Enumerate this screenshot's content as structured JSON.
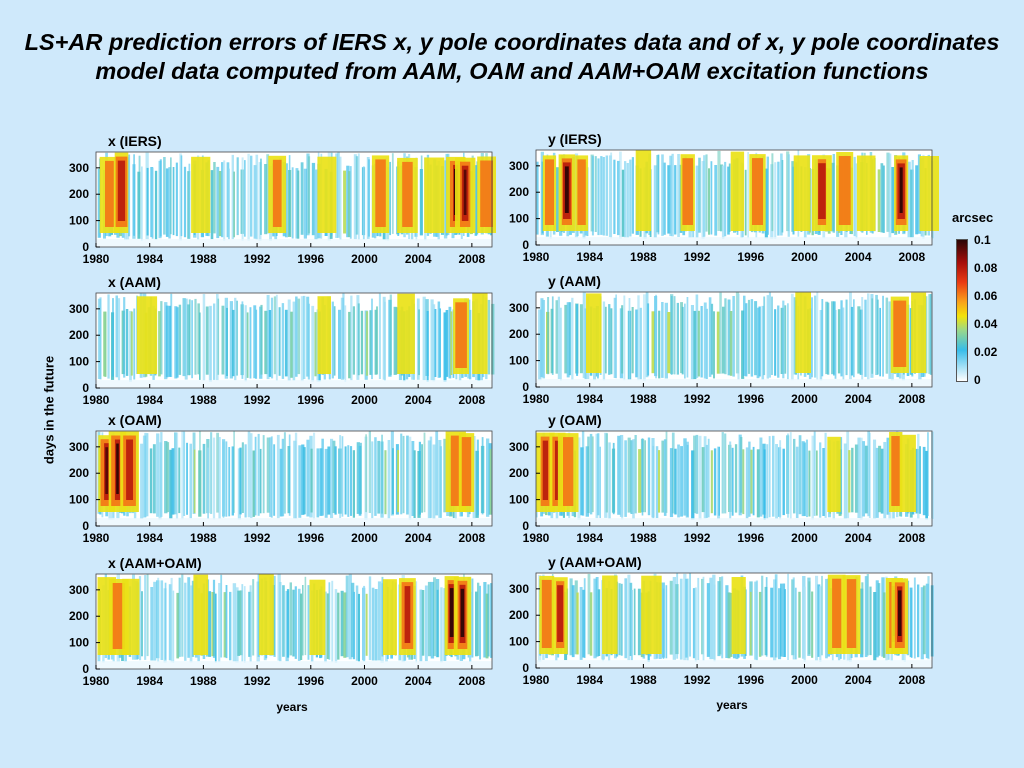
{
  "title": "LS+AR prediction errors of IERS x, y pole coordinates data and of x, y pole coordinates model data computed from AAM, OAM and AAM+OAM excitation functions",
  "y_axis_label": "days in the future",
  "x_axis_label": "years",
  "colorbar": {
    "title": "arcsec",
    "ticks": [
      "0.1",
      "0.08",
      "0.06",
      "0.04",
      "0.02",
      "0"
    ]
  },
  "chart_data": [
    {
      "type": "heatmap",
      "panel": "x (IERS)",
      "title": "x (IERS)",
      "xlim": [
        1980,
        2009.5
      ],
      "ylim": [
        0,
        360
      ],
      "x_ticks": [
        "1980",
        "1984",
        "1988",
        "1992",
        "1996",
        "2000",
        "2004",
        "2008"
      ],
      "y_ticks": [
        "0",
        "100",
        "200",
        "300"
      ],
      "colorbar_units": "arcsec",
      "clim": [
        0,
        0.1
      ],
      "events": [
        [
          1981.0,
          0.075
        ],
        [
          1981.9,
          0.09
        ],
        [
          1987.8,
          0.05
        ],
        [
          1993.5,
          0.065
        ],
        [
          1997.2,
          0.045
        ],
        [
          2001.2,
          0.075
        ],
        [
          2003.2,
          0.065
        ],
        [
          2005.2,
          0.045
        ],
        [
          2006.8,
          0.1
        ],
        [
          2007.5,
          0.095
        ],
        [
          2009.1,
          0.07
        ]
      ]
    },
    {
      "type": "heatmap",
      "panel": "y (IERS)",
      "title": "y (IERS)",
      "xlim": [
        1980,
        2009.5
      ],
      "ylim": [
        0,
        360
      ],
      "x_ticks": [
        "1980",
        "1984",
        "1988",
        "1992",
        "1996",
        "2000",
        "2004",
        "2008"
      ],
      "y_ticks": [
        "0",
        "100",
        "200",
        "300"
      ],
      "colorbar_units": "arcsec",
      "clim": [
        0,
        0.1
      ],
      "events": [
        [
          1981.0,
          0.07
        ],
        [
          1982.3,
          0.1
        ],
        [
          1983.4,
          0.07
        ],
        [
          1988.0,
          0.055
        ],
        [
          1989.8,
          0.04
        ],
        [
          1991.3,
          0.075
        ],
        [
          1995.0,
          0.055
        ],
        [
          1996.5,
          0.07
        ],
        [
          1999.8,
          0.055
        ],
        [
          2001.3,
          0.09
        ],
        [
          2003.0,
          0.07
        ],
        [
          2004.6,
          0.06
        ],
        [
          2007.2,
          0.1
        ],
        [
          2009.3,
          0.05
        ]
      ]
    },
    {
      "type": "heatmap",
      "panel": "x (AAM)",
      "title": "x (AAM)",
      "xlim": [
        1980,
        2009.5
      ],
      "ylim": [
        0,
        360
      ],
      "x_ticks": [
        "1980",
        "1984",
        "1988",
        "1992",
        "1996",
        "2000",
        "2004",
        "2008"
      ],
      "y_ticks": [
        "0",
        "100",
        "200",
        "300"
      ],
      "colorbar_units": "arcsec",
      "clim": [
        0,
        0.1
      ],
      "events": [
        [
          1983.8,
          0.05
        ],
        [
          1987.3,
          0.04
        ],
        [
          1993.2,
          0.04
        ],
        [
          1997.0,
          0.045
        ],
        [
          2003.1,
          0.045
        ],
        [
          2007.2,
          0.065
        ],
        [
          2008.6,
          0.045
        ]
      ]
    },
    {
      "type": "heatmap",
      "panel": "y (AAM)",
      "title": "y (AAM)",
      "xlim": [
        1980,
        2009.5
      ],
      "ylim": [
        0,
        360
      ],
      "x_ticks": [
        "1980",
        "1984",
        "1988",
        "1992",
        "1996",
        "2000",
        "2004",
        "2008"
      ],
      "y_ticks": [
        "0",
        "100",
        "200",
        "300"
      ],
      "colorbar_units": "arcsec",
      "clim": [
        0,
        0.1
      ],
      "events": [
        [
          1982.1,
          0.04
        ],
        [
          1984.3,
          0.045
        ],
        [
          1999.9,
          0.045
        ],
        [
          2002.8,
          0.04
        ],
        [
          2007.1,
          0.07
        ],
        [
          2008.5,
          0.05
        ]
      ]
    },
    {
      "type": "heatmap",
      "panel": "x (OAM)",
      "title": "x (OAM)",
      "xlim": [
        1980,
        2009.5
      ],
      "ylim": [
        0,
        360
      ],
      "x_ticks": [
        "1980",
        "1984",
        "1988",
        "1992",
        "1996",
        "2000",
        "2004",
        "2008"
      ],
      "y_ticks": [
        "0",
        "100",
        "200",
        "300"
      ],
      "colorbar_units": "arcsec",
      "clim": [
        0,
        0.1
      ],
      "events": [
        [
          1980.8,
          0.095
        ],
        [
          1981.6,
          0.1
        ],
        [
          1982.5,
          0.085
        ],
        [
          1994.3,
          0.04
        ],
        [
          2006.8,
          0.075
        ],
        [
          2007.6,
          0.07
        ]
      ]
    },
    {
      "type": "heatmap",
      "panel": "y (OAM)",
      "title": "y (OAM)",
      "xlim": [
        1980,
        2009.5
      ],
      "ylim": [
        0,
        360
      ],
      "x_ticks": [
        "1980",
        "1984",
        "1988",
        "1992",
        "1996",
        "2000",
        "2004",
        "2008"
      ],
      "y_ticks": [
        "0",
        "100",
        "200",
        "300"
      ],
      "colorbar_units": "arcsec",
      "clim": [
        0,
        0.1
      ],
      "events": [
        [
          1980.7,
          0.085
        ],
        [
          1981.6,
          0.09
        ],
        [
          1982.4,
          0.075
        ],
        [
          2002.2,
          0.045
        ],
        [
          2006.8,
          0.065
        ],
        [
          2007.7,
          0.06
        ]
      ]
    },
    {
      "type": "heatmap",
      "panel": "x (AAM+OAM)",
      "title": "x (AAM+OAM)",
      "xlim": [
        1980,
        2009.5
      ],
      "ylim": [
        0,
        360
      ],
      "x_ticks": [
        "1980",
        "1984",
        "1988",
        "1992",
        "1996",
        "2000",
        "2004",
        "2008"
      ],
      "y_ticks": [
        "0",
        "100",
        "200",
        "300"
      ],
      "colorbar_units": "arcsec",
      "clim": [
        0,
        0.1
      ],
      "events": [
        [
          1980.8,
          0.06
        ],
        [
          1981.7,
          0.075
        ],
        [
          1982.6,
          0.06
        ],
        [
          1987.8,
          0.045
        ],
        [
          1992.7,
          0.05
        ],
        [
          1996.5,
          0.045
        ],
        [
          2001.9,
          0.06
        ],
        [
          2003.2,
          0.08
        ],
        [
          2006.5,
          0.1
        ],
        [
          2007.3,
          0.1
        ]
      ]
    },
    {
      "type": "heatmap",
      "panel": "y (AAM+OAM)",
      "title": "y (AAM+OAM)",
      "xlim": [
        1980,
        2009.5
      ],
      "ylim": [
        0,
        360
      ],
      "x_ticks": [
        "1980",
        "1984",
        "1988",
        "1992",
        "1996",
        "2000",
        "2004",
        "2008"
      ],
      "y_ticks": [
        "0",
        "100",
        "200",
        "300"
      ],
      "colorbar_units": "arcsec",
      "clim": [
        0,
        0.1
      ],
      "events": [
        [
          1980.8,
          0.07
        ],
        [
          1981.8,
          0.08
        ],
        [
          1985.5,
          0.045
        ],
        [
          1988.6,
          0.05
        ],
        [
          1995.1,
          0.045
        ],
        [
          2002.4,
          0.07
        ],
        [
          2003.5,
          0.065
        ],
        [
          2006.7,
          0.1
        ],
        [
          2007.1,
          0.1
        ]
      ]
    }
  ]
}
